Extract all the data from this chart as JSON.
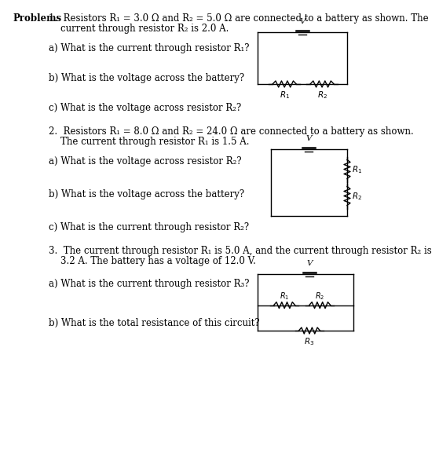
{
  "bg_color": "#ffffff",
  "text_color": "#000000",
  "problems_label": "Problems",
  "p1_header_1": "1.  Resistors R₁ = 3.0 Ω and R₂ = 5.0 Ω are connected to a battery as shown. The",
  "p1_header_2": "    current through resistor R₂ is 2.0 A.",
  "p1_a": "a) What is the current through resistor R₁?",
  "p1_b": "b) What is the voltage across the battery?",
  "p1_c": "c) What is the voltage across resistor R₂?",
  "p2_header_1": "2.  Resistors R₁ = 8.0 Ω and R₂ = 24.0 Ω are connected to a battery as shown.",
  "p2_header_2": "    The current through resistor R₁ is 1.5 A.",
  "p2_a": "a) What is the voltage across resistor R₂?",
  "p2_b": "b) What is the voltage across the battery?",
  "p2_c": "c) What is the current through resistor R₂?",
  "p3_header_1": "3.  The current through resistor R₁ is 5.0 A, and the current through resistor R₂ is",
  "p3_header_2": "    3.2 A. The battery has a voltage of 12.0 V.",
  "p3_a": "a) What is the current through resistor R₃?",
  "p3_b": "b) What is the total resistance of this circuit?",
  "font_size": 8.5,
  "font_size_bold": 8.5,
  "font_size_circ": 7.5
}
